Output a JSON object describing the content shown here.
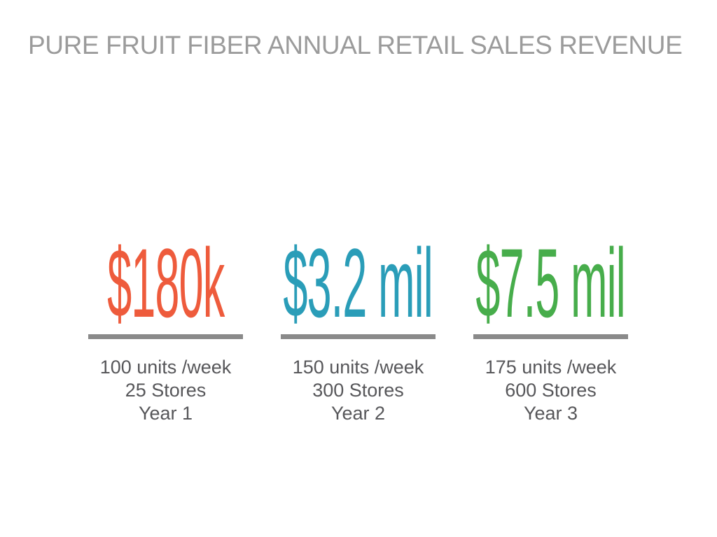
{
  "slide": {
    "title": "PURE FRUIT FIBER ANNUAL RETAIL SALES REVENUE",
    "title_color": "#9b9b9b",
    "background_color": "#ffffff"
  },
  "columns": [
    {
      "amount": "$180k",
      "amount_color": "#ee5b3c",
      "divider_color": "#8a8a8a",
      "caption_color": "#57575a",
      "caption": {
        "units": "100 units /week",
        "stores": "25 Stores",
        "year": "Year 1"
      }
    },
    {
      "amount": "$3.2 mil",
      "amount_color": "#2a9db8",
      "divider_color": "#8a8a8a",
      "caption_color": "#57575a",
      "caption": {
        "units": "150 units /week",
        "stores": "300 Stores",
        "year": "Year 2"
      }
    },
    {
      "amount": "$7.5 mil",
      "amount_color": "#47ad4b",
      "divider_color": "#8a8a8a",
      "caption_color": "#57575a",
      "caption": {
        "units": "175 units /week",
        "stores": "600 Stores",
        "year": "Year 3"
      }
    }
  ],
  "chart_data": {
    "type": "table",
    "title": "PURE FRUIT FIBER ANNUAL RETAIL SALES REVENUE",
    "categories": [
      "Year 1",
      "Year 2",
      "Year 3"
    ],
    "series": [
      {
        "name": "Annual retail sales revenue",
        "values": [
          "$180k",
          "$3.2 mil",
          "$7.5 mil"
        ],
        "values_usd": [
          180000,
          3200000,
          7500000
        ]
      },
      {
        "name": "Units per week",
        "values": [
          100,
          150,
          175
        ]
      },
      {
        "name": "Stores",
        "values": [
          25,
          300,
          600
        ]
      }
    ],
    "legend_position": "none",
    "grid": false
  }
}
